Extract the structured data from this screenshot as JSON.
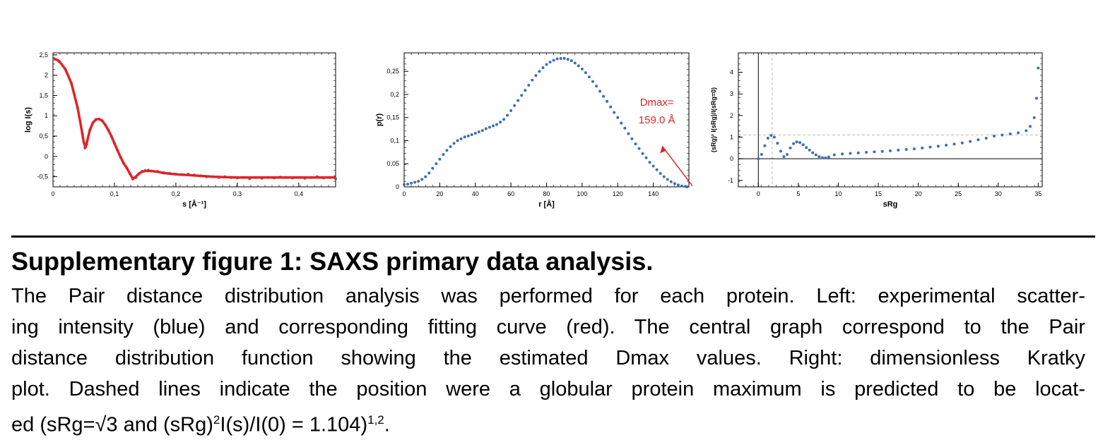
{
  "colors": {
    "data": "#3c6eb4",
    "fit": "#e02424",
    "annotation": "#e02424",
    "guide": "#bbbbbb"
  },
  "chart_data": [
    {
      "type": "scatter",
      "xlabel": "s [Å⁻¹]",
      "ylabel": "log I(s)",
      "xlim": [
        0,
        0.46
      ],
      "ylim": [
        -0.75,
        2.55
      ],
      "xticks": [
        0,
        0.1,
        0.2,
        0.3,
        0.4
      ],
      "xtick_labels": [
        "0",
        "0,1",
        "0,2",
        "0,3",
        "0,4"
      ],
      "yticks": [
        -0.5,
        0,
        0.5,
        1,
        1.5,
        2,
        2.5
      ],
      "ytick_labels": [
        "-0,5",
        "0",
        "0,5",
        "1",
        "1,5",
        "2",
        "2,5"
      ],
      "series": [
        {
          "kind": "points",
          "color": "data",
          "x": [
            0.002,
            0.01,
            0.02,
            0.03,
            0.04,
            0.048,
            0.052,
            0.055,
            0.06,
            0.065,
            0.07,
            0.075,
            0.08,
            0.085,
            0.09,
            0.095,
            0.1,
            0.105,
            0.11,
            0.115,
            0.12,
            0.125,
            0.13,
            0.135,
            0.14,
            0.145,
            0.15,
            0.155,
            0.16,
            0.17,
            0.18,
            0.19,
            0.2,
            0.21,
            0.22,
            0.23,
            0.24,
            0.25,
            0.26,
            0.27,
            0.28,
            0.29,
            0.3,
            0.31,
            0.32,
            0.33,
            0.34,
            0.35,
            0.36,
            0.37,
            0.38,
            0.39,
            0.4,
            0.41,
            0.42,
            0.43,
            0.44,
            0.45,
            0.46
          ],
          "y": [
            2.4,
            2.33,
            2.15,
            1.8,
            1.2,
            0.55,
            0.21,
            0.3,
            0.65,
            0.83,
            0.91,
            0.92,
            0.88,
            0.78,
            0.65,
            0.5,
            0.32,
            0.15,
            -0.02,
            -0.17,
            -0.28,
            -0.42,
            -0.56,
            -0.52,
            -0.43,
            -0.37,
            -0.35,
            -0.34,
            -0.36,
            -0.37,
            -0.4,
            -0.42,
            -0.44,
            -0.45,
            -0.44,
            -0.46,
            -0.48,
            -0.5,
            -0.5,
            -0.52,
            -0.5,
            -0.52,
            -0.53,
            -0.52,
            -0.55,
            -0.52,
            -0.54,
            -0.52,
            -0.53,
            -0.51,
            -0.52,
            -0.53,
            -0.52,
            -0.54,
            -0.52,
            -0.5,
            -0.53,
            -0.52,
            -0.55
          ]
        },
        {
          "kind": "line",
          "color": "fit",
          "x": [
            0,
            0.01,
            0.02,
            0.03,
            0.04,
            0.045,
            0.05,
            0.053,
            0.056,
            0.06,
            0.065,
            0.07,
            0.075,
            0.08,
            0.085,
            0.09,
            0.095,
            0.1,
            0.105,
            0.11,
            0.115,
            0.12,
            0.125,
            0.13,
            0.135,
            0.14,
            0.145,
            0.15,
            0.16,
            0.17,
            0.18,
            0.2,
            0.22,
            0.24,
            0.26,
            0.28,
            0.3,
            0.32,
            0.34,
            0.36,
            0.38,
            0.4,
            0.42,
            0.44,
            0.46
          ],
          "y": [
            2.42,
            2.35,
            2.15,
            1.8,
            1.2,
            0.8,
            0.35,
            0.22,
            0.4,
            0.65,
            0.83,
            0.91,
            0.92,
            0.88,
            0.78,
            0.65,
            0.5,
            0.32,
            0.15,
            -0.02,
            -0.17,
            -0.28,
            -0.42,
            -0.55,
            -0.5,
            -0.42,
            -0.38,
            -0.36,
            -0.36,
            -0.38,
            -0.41,
            -0.44,
            -0.46,
            -0.48,
            -0.5,
            -0.51,
            -0.52,
            -0.52,
            -0.52,
            -0.52,
            -0.52,
            -0.52,
            -0.52,
            -0.52,
            -0.52
          ]
        }
      ]
    },
    {
      "type": "scatter",
      "xlabel": "r [Å]",
      "ylabel": "p(r)",
      "xlim": [
        0,
        160
      ],
      "ylim": [
        0,
        0.29
      ],
      "xticks": [
        0,
        20,
        40,
        60,
        80,
        100,
        120,
        140
      ],
      "xtick_labels": [
        "0",
        "20",
        "40",
        "60",
        "80",
        "100",
        "120",
        "140"
      ],
      "yticks": [
        0,
        0.05,
        0.1,
        0.15,
        0.2,
        0.25
      ],
      "ytick_labels": [
        "0",
        "0,05",
        "0,1",
        "0,15",
        "0,2",
        "0,25"
      ],
      "series": [
        {
          "kind": "points",
          "color": "data",
          "x": [
            0,
            2,
            4,
            6,
            8,
            10,
            12,
            14,
            16,
            18,
            20,
            22,
            24,
            26,
            28,
            30,
            32,
            34,
            36,
            38,
            40,
            42,
            44,
            46,
            48,
            50,
            52,
            54,
            56,
            58,
            60,
            62,
            64,
            66,
            68,
            70,
            72,
            74,
            76,
            78,
            80,
            82,
            84,
            86,
            88,
            90,
            92,
            94,
            96,
            98,
            100,
            102,
            104,
            106,
            108,
            110,
            112,
            114,
            116,
            118,
            120,
            122,
            124,
            126,
            128,
            130,
            132,
            134,
            136,
            138,
            140,
            142,
            144,
            146,
            148,
            150,
            152,
            154,
            156,
            158,
            159
          ],
          "y": [
            0.005,
            0.006,
            0.008,
            0.01,
            0.012,
            0.016,
            0.022,
            0.03,
            0.04,
            0.05,
            0.06,
            0.07,
            0.079,
            0.087,
            0.094,
            0.1,
            0.104,
            0.108,
            0.11,
            0.113,
            0.116,
            0.119,
            0.122,
            0.126,
            0.129,
            0.132,
            0.135,
            0.14,
            0.146,
            0.155,
            0.165,
            0.176,
            0.187,
            0.198,
            0.209,
            0.22,
            0.231,
            0.241,
            0.25,
            0.258,
            0.265,
            0.27,
            0.274,
            0.277,
            0.278,
            0.278,
            0.276,
            0.273,
            0.268,
            0.262,
            0.255,
            0.247,
            0.238,
            0.228,
            0.218,
            0.207,
            0.196,
            0.185,
            0.173,
            0.161,
            0.15,
            0.138,
            0.127,
            0.115,
            0.104,
            0.093,
            0.083,
            0.072,
            0.063,
            0.053,
            0.045,
            0.037,
            0.029,
            0.022,
            0.016,
            0.011,
            0.007,
            0.004,
            0.002,
            0.001,
            0.0
          ]
        }
      ],
      "annotation": {
        "lines": [
          "Dmax=",
          "159.0 Å"
        ],
        "arrow_from": [
          162,
          0.002
        ],
        "arrow_to": [
          145,
          0.088
        ]
      }
    },
    {
      "type": "scatter",
      "xlabel": "sRg",
      "ylabel": "(sRg)² I(sRg)/I(sRg=0)",
      "xlim": [
        -2.5,
        35.5
      ],
      "ylim": [
        -1.3,
        4.9
      ],
      "xticks": [
        0,
        5,
        10,
        15,
        20,
        25,
        30,
        35
      ],
      "xtick_labels": [
        "0",
        "5",
        "10",
        "15",
        "20",
        "25",
        "30",
        "35"
      ],
      "yticks": [
        -1,
        0,
        1,
        2,
        3,
        4
      ],
      "ytick_labels": [
        "-1",
        "0",
        "1",
        "2",
        "3",
        "4"
      ],
      "guides": {
        "x": 1.732,
        "y": 1.104
      },
      "series": [
        {
          "kind": "points",
          "color": "data",
          "x": [
            0,
            0.4,
            0.8,
            1.2,
            1.6,
            2.0,
            2.4,
            2.8,
            3.2,
            3.6,
            4.0,
            4.4,
            4.8,
            5.2,
            5.6,
            6.0,
            6.4,
            6.8,
            7.2,
            7.6,
            8.0,
            8.4,
            8.8,
            9.5,
            10.5,
            11.5,
            12.5,
            13.5,
            14.5,
            15.5,
            16.5,
            17.5,
            18.5,
            19.5,
            20.5,
            21.5,
            22.5,
            23.5,
            24.5,
            25.5,
            26.5,
            27.5,
            28.5,
            29.5,
            30.5,
            31.5,
            32.5,
            33.5,
            34.0,
            34.5,
            34.8,
            35.0
          ],
          "y": [
            0,
            0.2,
            0.6,
            0.95,
            1.08,
            1.0,
            0.72,
            0.35,
            0.1,
            0.2,
            0.5,
            0.7,
            0.78,
            0.75,
            0.65,
            0.52,
            0.4,
            0.28,
            0.18,
            0.1,
            0.05,
            0.04,
            0.08,
            0.18,
            0.22,
            0.25,
            0.27,
            0.3,
            0.32,
            0.34,
            0.37,
            0.4,
            0.43,
            0.46,
            0.5,
            0.54,
            0.58,
            0.63,
            0.68,
            0.73,
            0.8,
            0.88,
            0.95,
            1.05,
            1.1,
            1.15,
            1.2,
            1.3,
            1.5,
            1.9,
            2.8,
            4.2
          ]
        }
      ]
    }
  ],
  "caption": {
    "title": "Supplementary figure 1: SAXS primary data analysis.",
    "lines": [
      "The Pair distance distribution analysis was performed for each protein. Left: experimental scatter-",
      "ing intensity (blue) and corresponding fitting curve (red). The central graph correspond to the Pair",
      "distance distribution function showing the estimated Dmax values. Right: dimensionless Kratky",
      "plot. Dashed lines indicate the position were a globular protein maximum is predicted to be locat-"
    ],
    "last_line": {
      "pre": "ed (sRg=√3 and (sRg)",
      "sup1": "2",
      "mid": "I(s)/I(0) = 1.104)",
      "sup2": "1,2",
      "post": "."
    }
  }
}
